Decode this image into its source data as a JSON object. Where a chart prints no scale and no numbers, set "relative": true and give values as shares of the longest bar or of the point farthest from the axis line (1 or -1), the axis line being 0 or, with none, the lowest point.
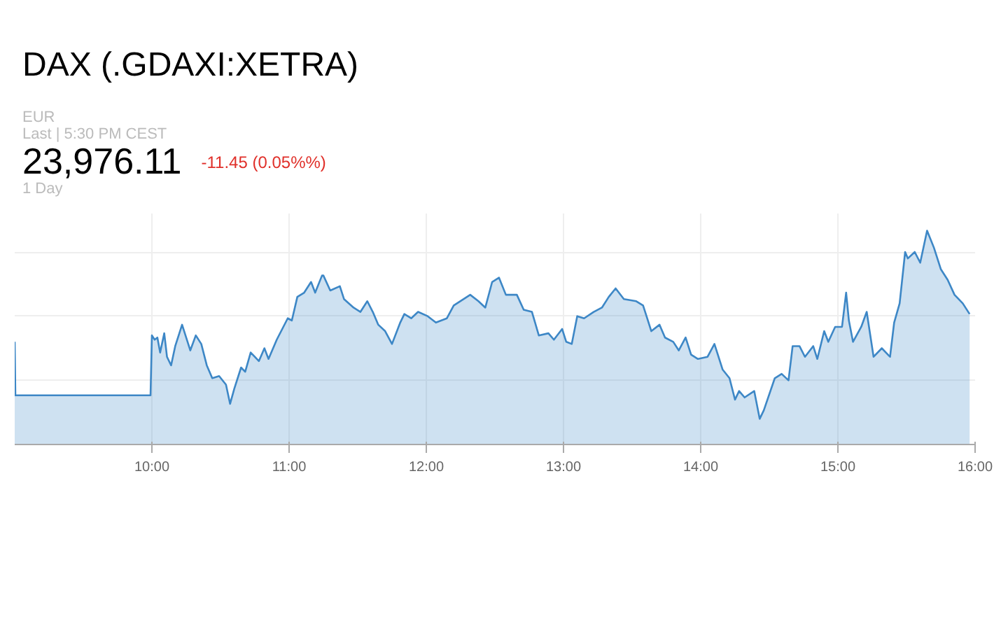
{
  "chart_data": {
    "type": "area",
    "title": "DAX (.GDAXI:XETRA)",
    "annotations": [
      "EUR",
      "Last | 5:30 PM CEST",
      "23,976.11",
      "-11.45 (0.05%%)",
      "1 Day"
    ],
    "relative": true,
    "grid": true,
    "xlim": [
      9,
      16
    ],
    "xticks": [
      {
        "value": 10,
        "label": "10:00"
      },
      {
        "value": 11,
        "label": "11:00"
      },
      {
        "value": 12,
        "label": "12:00"
      },
      {
        "value": 13,
        "label": "13:00"
      },
      {
        "value": 14,
        "label": "14:00"
      },
      {
        "value": 15,
        "label": "15:00"
      },
      {
        "value": 16,
        "label": "16:00"
      }
    ],
    "series": [
      {
        "color": "#3d87c6",
        "x": [
          9.0,
          9.005,
          9.99,
          10.0,
          10.02,
          10.04,
          10.06,
          10.09,
          10.11,
          10.14,
          10.17,
          10.22,
          10.28,
          10.32,
          10.36,
          10.4,
          10.44,
          10.49,
          10.54,
          10.57,
          10.6,
          10.65,
          10.68,
          10.72,
          10.78,
          10.82,
          10.85,
          10.91,
          10.99,
          11.02,
          11.06,
          11.11,
          11.16,
          11.19,
          11.24,
          11.25,
          11.3,
          11.37,
          11.4,
          11.47,
          11.52,
          11.57,
          11.61,
          11.65,
          11.7,
          11.75,
          11.81,
          11.84,
          11.89,
          11.94,
          12.01,
          12.07,
          12.15,
          12.2,
          12.32,
          12.38,
          12.43,
          12.48,
          12.53,
          12.58,
          12.66,
          12.71,
          12.77,
          12.82,
          12.89,
          12.93,
          12.99,
          13.02,
          13.06,
          13.1,
          13.15,
          13.22,
          13.28,
          13.33,
          13.38,
          13.44,
          13.53,
          13.58,
          13.61,
          13.64,
          13.7,
          13.74,
          13.8,
          13.84,
          13.89,
          13.93,
          13.98,
          14.05,
          14.1,
          14.16,
          14.21,
          14.25,
          14.28,
          14.32,
          14.39,
          14.43,
          14.46,
          14.54,
          14.59,
          14.64,
          14.67,
          14.72,
          14.76,
          14.82,
          14.85,
          14.9,
          14.93,
          14.98,
          15.03,
          15.06,
          15.08,
          15.11,
          15.17,
          15.21,
          15.26,
          15.32,
          15.38,
          15.41,
          15.45,
          15.49,
          15.51,
          15.56,
          15.6,
          15.65,
          15.7,
          15.75,
          15.8,
          15.85,
          15.91,
          15.96
        ],
        "values": [
          0.48,
          0.23,
          0.23,
          0.51,
          0.49,
          0.5,
          0.43,
          0.52,
          0.41,
          0.37,
          0.46,
          0.56,
          0.44,
          0.51,
          0.47,
          0.37,
          0.31,
          0.32,
          0.28,
          0.19,
          0.26,
          0.36,
          0.34,
          0.43,
          0.39,
          0.45,
          0.4,
          0.49,
          0.59,
          0.58,
          0.69,
          0.71,
          0.76,
          0.71,
          0.79,
          0.79,
          0.72,
          0.74,
          0.68,
          0.64,
          0.62,
          0.67,
          0.62,
          0.56,
          0.53,
          0.47,
          0.57,
          0.61,
          0.59,
          0.62,
          0.6,
          0.57,
          0.59,
          0.65,
          0.7,
          0.67,
          0.64,
          0.76,
          0.78,
          0.7,
          0.7,
          0.63,
          0.62,
          0.51,
          0.52,
          0.49,
          0.54,
          0.48,
          0.47,
          0.6,
          0.59,
          0.62,
          0.64,
          0.69,
          0.73,
          0.68,
          0.67,
          0.65,
          0.59,
          0.53,
          0.56,
          0.5,
          0.48,
          0.44,
          0.5,
          0.42,
          0.4,
          0.41,
          0.47,
          0.35,
          0.31,
          0.21,
          0.25,
          0.22,
          0.25,
          0.12,
          0.16,
          0.31,
          0.33,
          0.3,
          0.46,
          0.46,
          0.41,
          0.46,
          0.4,
          0.53,
          0.48,
          0.55,
          0.55,
          0.71,
          0.58,
          0.48,
          0.55,
          0.62,
          0.41,
          0.45,
          0.41,
          0.57,
          0.66,
          0.9,
          0.87,
          0.9,
          0.85,
          1.0,
          0.92,
          0.82,
          0.77,
          0.7,
          0.66,
          0.61
        ]
      }
    ]
  }
}
